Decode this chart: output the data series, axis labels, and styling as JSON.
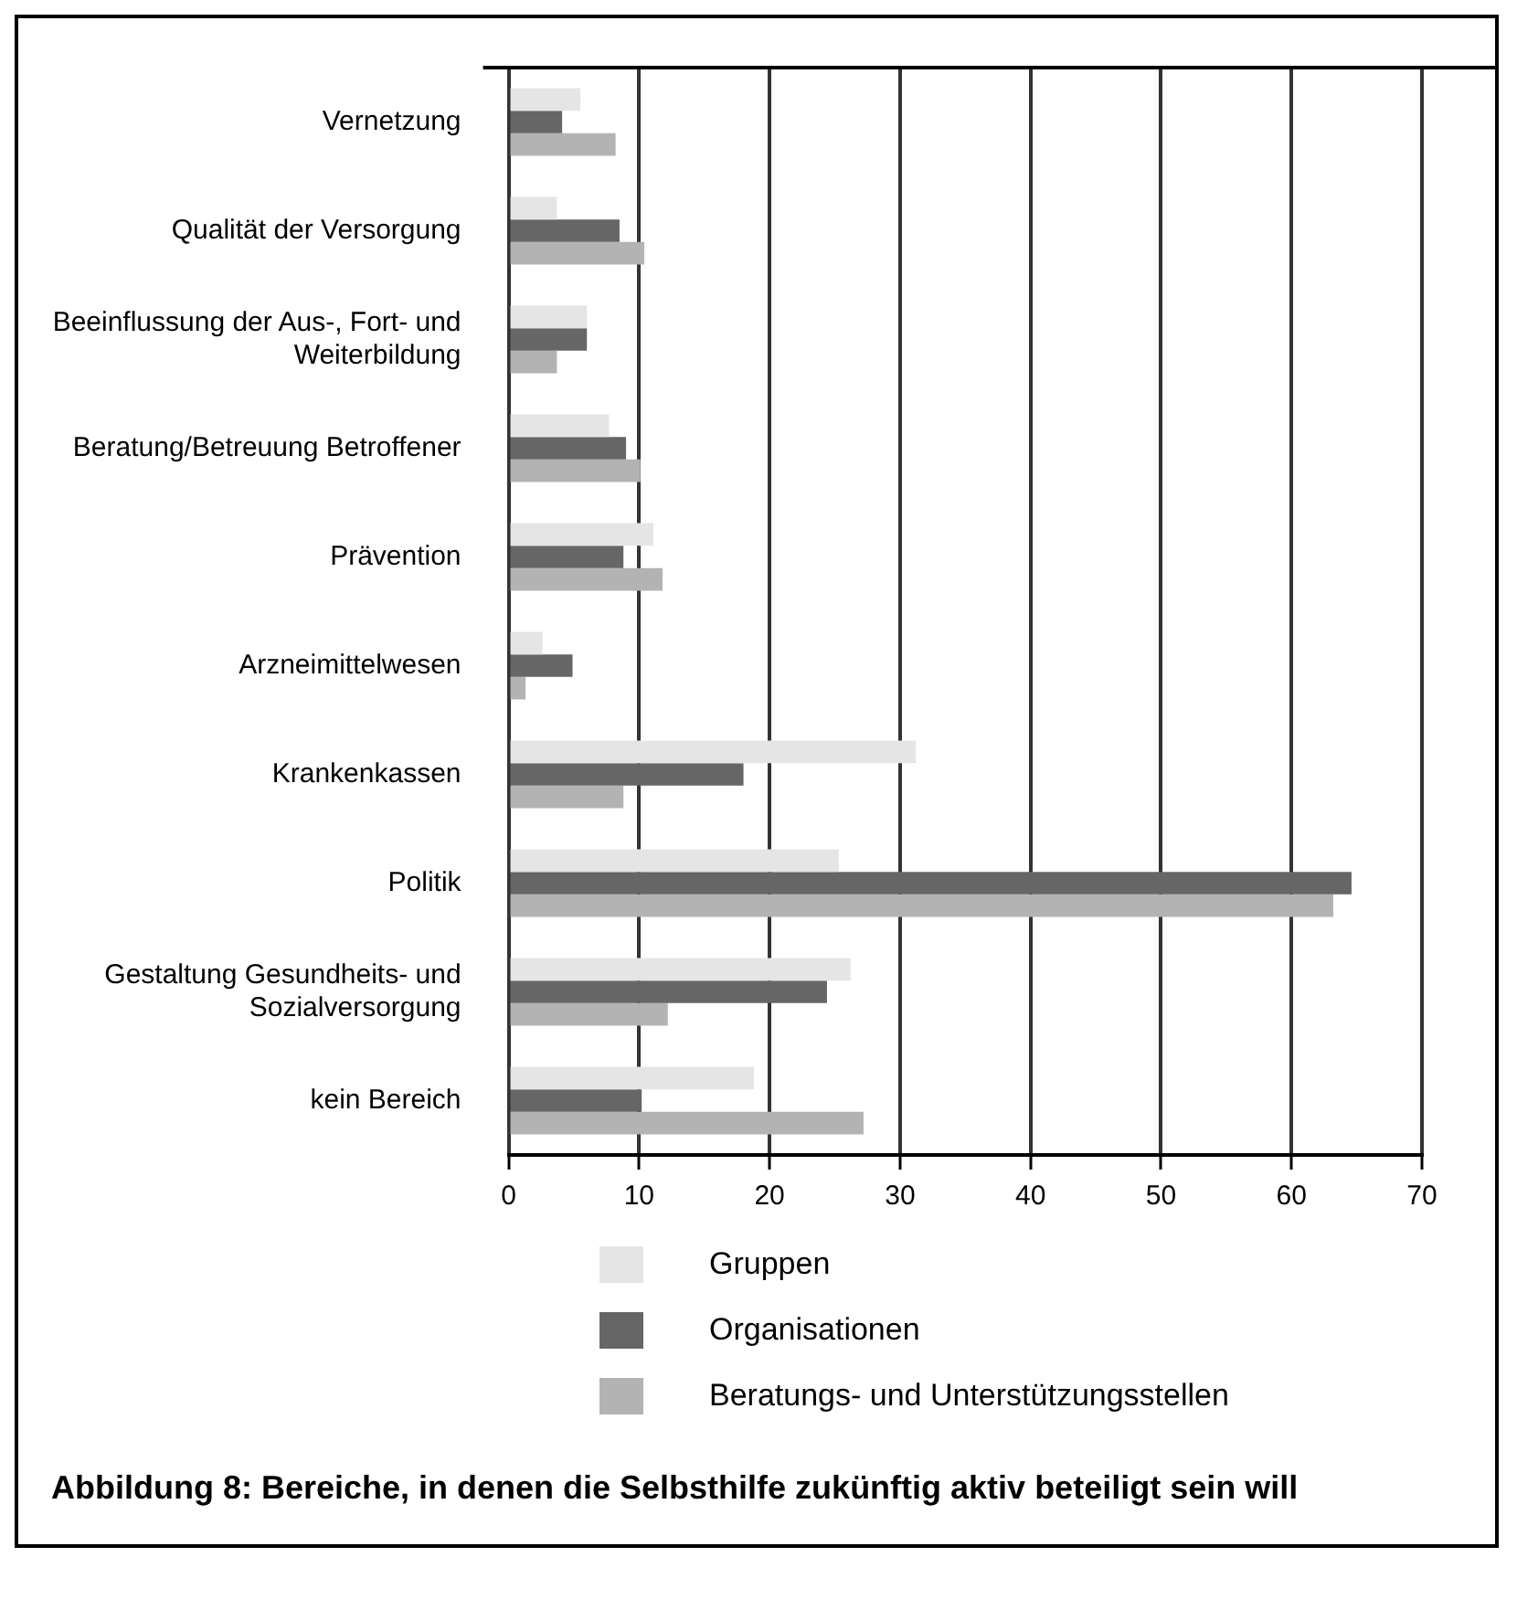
{
  "chart_data": {
    "type": "bar",
    "orientation": "horizontal",
    "title": "Abbildung 8: Bereiche, in denen die Selbsthilfe zukünftig aktiv beteiligt sein will",
    "categories": [
      "Vernetzung",
      "Qualität der Versorgung",
      "Beeinflussung der Aus-, Fort- und Weiterbildung",
      "Beratung/Betreuung Betroffener",
      "Prävention",
      "Arzneimittelwesen",
      "Krankenkassen",
      "Politik",
      "Gestaltung Gesundheits- und Sozialversorgung",
      "kein Bereich"
    ],
    "series": [
      {
        "name": "Gruppen",
        "color": "#e5e5e5",
        "values": [
          5.5,
          3.7,
          6.0,
          7.7,
          11.1,
          2.6,
          31.2,
          25.3,
          26.2,
          18.8
        ]
      },
      {
        "name": "Organisationen",
        "color": "#666666",
        "values": [
          4.1,
          8.5,
          6.0,
          9.0,
          8.8,
          4.9,
          18.0,
          64.6,
          24.4,
          10.2
        ]
      },
      {
        "name": "Beratungs- und Unterstützungsstellen",
        "color": "#b3b3b3",
        "values": [
          8.2,
          10.4,
          3.7,
          10.1,
          11.8,
          1.3,
          8.8,
          63.2,
          12.2,
          27.2
        ]
      }
    ],
    "xlim": [
      0,
      70
    ],
    "xticks": [
      0,
      10,
      20,
      30,
      40,
      50,
      60,
      70
    ],
    "grid": "x",
    "legend": "bottom"
  }
}
